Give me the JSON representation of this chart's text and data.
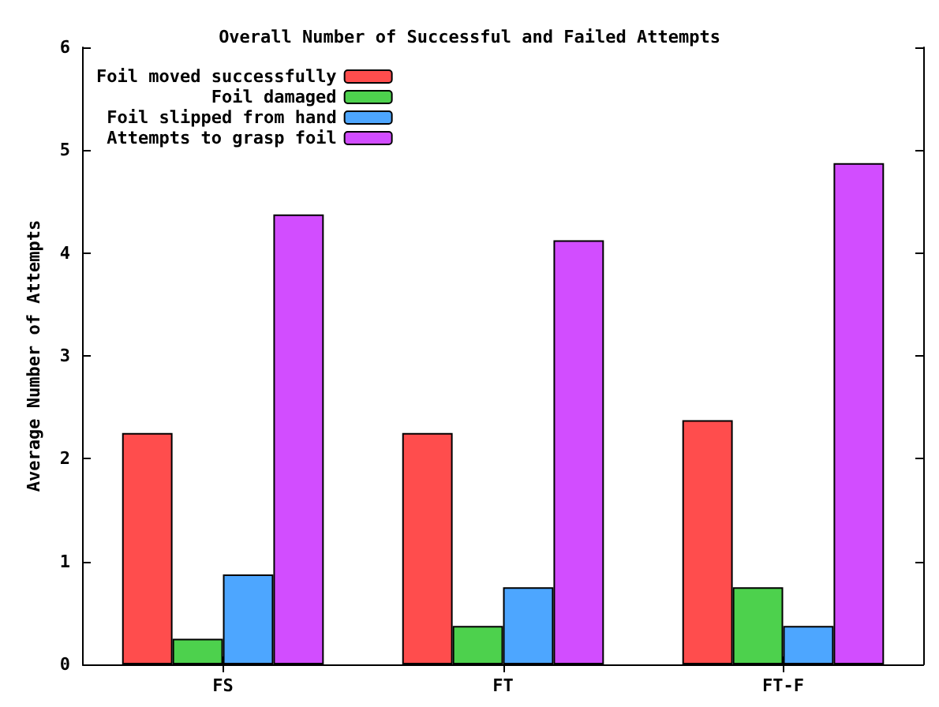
{
  "chart_data": {
    "type": "bar",
    "title": "Overall Number of Successful and Failed Attempts",
    "ylabel": "Average Number of Attempts",
    "categories": [
      "FS",
      "FT",
      "FT-F"
    ],
    "series": [
      {
        "name": "Foil moved successfully",
        "color": "#ff4d4d",
        "values": [
          2.25,
          2.25,
          2.375
        ]
      },
      {
        "name": "Foil damaged",
        "color": "#4dd14d",
        "values": [
          0.25,
          0.375,
          0.75
        ]
      },
      {
        "name": "Foil slipped from hand",
        "color": "#4da6ff",
        "values": [
          0.875,
          0.75,
          0.375
        ]
      },
      {
        "name": "Attempts to grasp foil",
        "color": "#d24dff",
        "values": [
          4.375,
          4.125,
          4.875
        ]
      }
    ],
    "ylim": [
      0,
      6
    ],
    "yticks": [
      0,
      1,
      2,
      3,
      4,
      5,
      6
    ],
    "grid": false,
    "legend": "top left"
  }
}
